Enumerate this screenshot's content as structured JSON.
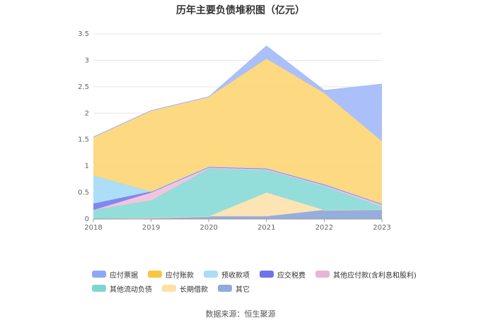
{
  "chart_data": {
    "type": "area",
    "stacked": true,
    "title": "历年主要负债堆积图（亿元）",
    "categories": [
      "2018",
      "2019",
      "2020",
      "2021",
      "2022",
      "2023"
    ],
    "ylim": [
      0,
      3.5
    ],
    "yticks": [
      "0",
      "0.5",
      "1",
      "1.5",
      "2",
      "2.5",
      "3",
      "3.5"
    ],
    "grid": true,
    "legend_position": "bottom",
    "series": [
      {
        "name": "其它",
        "color": "#8faadc",
        "values": [
          0,
          0.02,
          0.05,
          0.05,
          0.17,
          0.18
        ]
      },
      {
        "name": "长期借款",
        "color": "#fde3b0",
        "values": [
          0,
          0,
          0,
          0.45,
          0,
          0
        ]
      },
      {
        "name": "其他流动负债",
        "color": "#8ddcd8",
        "values": [
          0.17,
          0.33,
          0.9,
          0.42,
          0.45,
          0.05
        ]
      },
      {
        "name": "其他应付款(含利息和股利)",
        "color": "#f1c2dc",
        "values": [
          0,
          0.15,
          0.02,
          0.02,
          0.02,
          0.04
        ]
      },
      {
        "name": "应交税费",
        "color": "#7b7ff0",
        "values": [
          0.12,
          0.02,
          0.02,
          0.02,
          0.02,
          0.02
        ]
      },
      {
        "name": "预收款项",
        "color": "#a8dcf7",
        "values": [
          0.53,
          0,
          0,
          0,
          0,
          0
        ]
      },
      {
        "name": "应付账款",
        "color": "#fdd77b",
        "values": [
          0.73,
          1.53,
          1.32,
          2.07,
          1.72,
          1.18
        ]
      },
      {
        "name": "应付票据",
        "color": "#a6bdfa",
        "values": [
          0,
          0,
          0,
          0.24,
          0.05,
          1.08
        ]
      }
    ]
  },
  "legend": {
    "items": [
      {
        "label": "应付票据",
        "color": "#8fa8f5"
      },
      {
        "label": "应付账款",
        "color": "#f8c544"
      },
      {
        "label": "预收款项",
        "color": "#a8dcf7"
      },
      {
        "label": "应交税费",
        "color": "#6f73ea"
      },
      {
        "label": "其他应付款(含利息和股利)",
        "color": "#e9b5d6"
      },
      {
        "label": "其他流动负债",
        "color": "#7fd6d1"
      },
      {
        "label": "长期借款",
        "color": "#fde0a6"
      },
      {
        "label": "其它",
        "color": "#8faadc"
      }
    ]
  },
  "footer": {
    "source": "数据来源：恒生聚源"
  }
}
